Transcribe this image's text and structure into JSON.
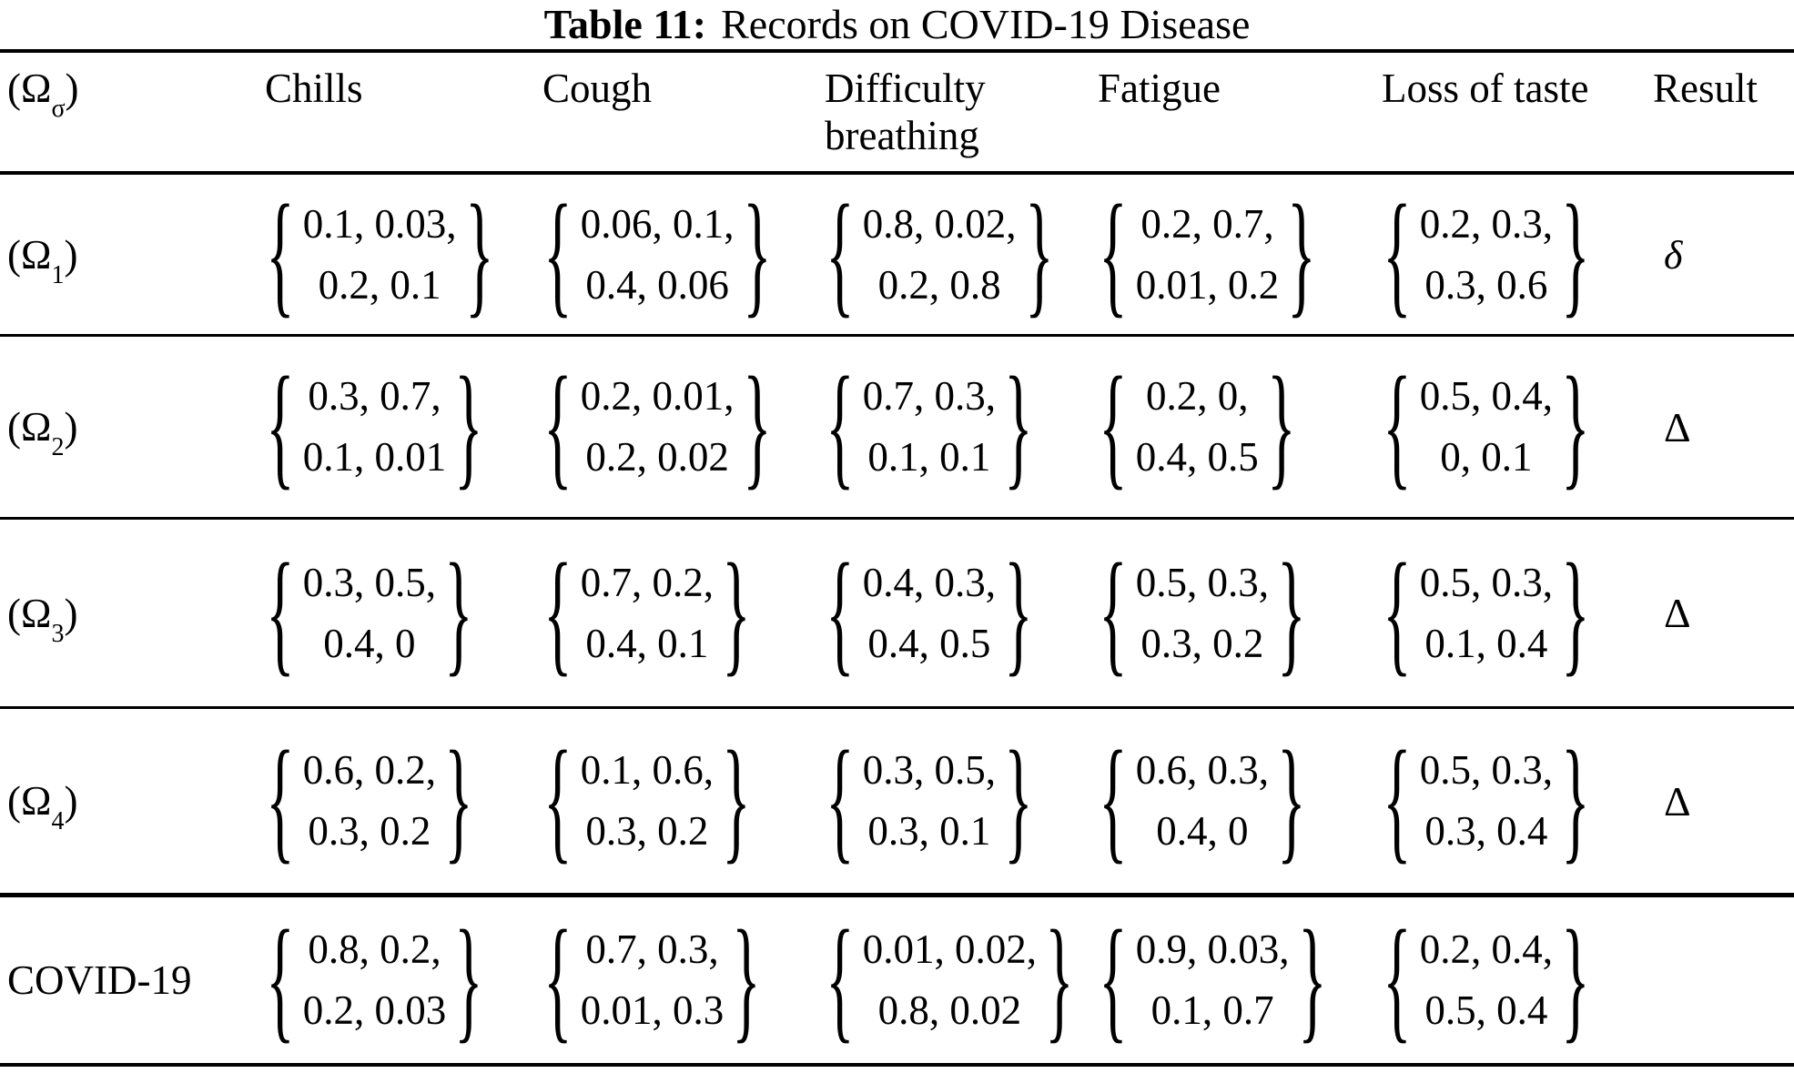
{
  "caption": {
    "label": "Table 11:",
    "text": "Records on COVID-19 Disease"
  },
  "header": {
    "omega_base": "(Ω",
    "omega_sub": "σ",
    "omega_end": ")",
    "columns": [
      "Chills",
      "Cough",
      "Difficulty breathing",
      "Fatigue",
      "Loss of taste",
      "Result"
    ]
  },
  "glyphs": {
    "left_brace": "{",
    "right_brace": "}"
  },
  "colors": {
    "text": "#000000",
    "background": "#ffffff",
    "rule": "#000000"
  },
  "rows": [
    {
      "label": {
        "base": "(Ω",
        "sub": "1",
        "end": ")"
      },
      "cells": [
        [
          "0.1, 0.03,",
          "0.2, 0.1"
        ],
        [
          "0.06, 0.1,",
          "0.4, 0.06"
        ],
        [
          "0.8, 0.02,",
          "0.2, 0.8"
        ],
        [
          "0.2, 0.7,",
          "0.01, 0.2"
        ],
        [
          "0.2, 0.3,",
          "0.3, 0.6"
        ]
      ],
      "result": "δ"
    },
    {
      "label": {
        "base": "(Ω",
        "sub": "2",
        "end": ")"
      },
      "cells": [
        [
          "0.3, 0.7,",
          "0.1, 0.01"
        ],
        [
          "0.2, 0.01,",
          "0.2, 0.02"
        ],
        [
          "0.7, 0.3,",
          "0.1, 0.1"
        ],
        [
          "0.2, 0,",
          "0.4, 0.5"
        ],
        [
          "0.5, 0.4,",
          "0, 0.1"
        ]
      ],
      "result": "Δ"
    },
    {
      "label": {
        "base": "(Ω",
        "sub": "3",
        "end": ")"
      },
      "cells": [
        [
          "0.3, 0.5,",
          "0.4, 0"
        ],
        [
          "0.7, 0.2,",
          "0.4, 0.1"
        ],
        [
          "0.4, 0.3,",
          "0.4, 0.5"
        ],
        [
          "0.5, 0.3,",
          "0.3, 0.2"
        ],
        [
          "0.5, 0.3,",
          "0.1, 0.4"
        ]
      ],
      "result": "Δ"
    },
    {
      "label": {
        "base": "(Ω",
        "sub": "4",
        "end": ")"
      },
      "cells": [
        [
          "0.6, 0.2,",
          "0.3, 0.2"
        ],
        [
          "0.1, 0.6,",
          "0.3, 0.2"
        ],
        [
          "0.3, 0.5,",
          "0.3, 0.1"
        ],
        [
          "0.6, 0.3,",
          "0.4, 0"
        ],
        [
          "0.5, 0.3,",
          "0.3, 0.4"
        ]
      ],
      "result": "Δ"
    },
    {
      "label": {
        "base": "COVID-19",
        "sub": "",
        "end": ""
      },
      "cells": [
        [
          "0.8, 0.2,",
          "0.2, 0.03"
        ],
        [
          "0.7, 0.3,",
          "0.01, 0.3"
        ],
        [
          "0.01, 0.02,",
          "0.8, 0.02"
        ],
        [
          "0.9, 0.03,",
          "0.1, 0.7"
        ],
        [
          "0.2, 0.4,",
          "0.5, 0.4"
        ]
      ],
      "result": ""
    }
  ]
}
